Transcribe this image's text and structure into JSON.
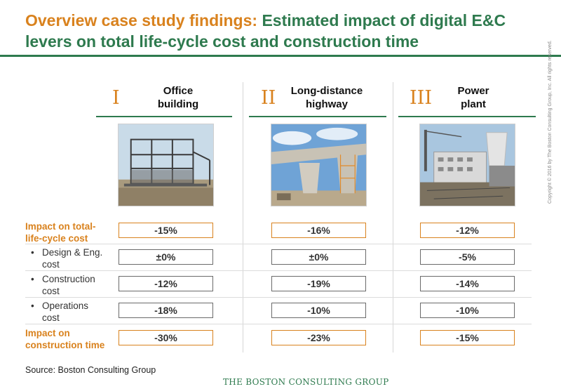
{
  "title": {
    "part1": "Overview case study findings:",
    "part2": " Estimated impact of digital E&C levers on total life-cycle cost and construction time"
  },
  "columns": [
    {
      "numeral": "I",
      "label_line1": "Office",
      "label_line2": "building"
    },
    {
      "numeral": "II",
      "label_line1": "Long-distance",
      "label_line2": "highway"
    },
    {
      "numeral": "III",
      "label_line1": "Power",
      "label_line2": "plant"
    }
  ],
  "rows": [
    {
      "line1": "Impact on total-",
      "line2": "life-cycle cost",
      "kind": "main",
      "values": [
        "-15%",
        "-16%",
        "-12%"
      ]
    },
    {
      "line1": "Design & Eng.",
      "line2": "cost",
      "kind": "sub",
      "values": [
        "±0%",
        "±0%",
        "-5%"
      ]
    },
    {
      "line1": "Construction",
      "line2": "cost",
      "kind": "sub",
      "values": [
        "-12%",
        "-19%",
        "-14%"
      ]
    },
    {
      "line1": "Operations",
      "line2": "cost",
      "kind": "sub",
      "values": [
        "-18%",
        "-10%",
        "-10%"
      ]
    },
    {
      "line1": "Impact on",
      "line2": "construction time",
      "kind": "main",
      "values": [
        "-30%",
        "-23%",
        "-15%"
      ]
    }
  ],
  "bullet": "•",
  "source": "Source: Boston Consulting Group",
  "footer_brand": "THE BOSTON CONSULTING GROUP",
  "copyright": "Copyright © 2016 by The Boston Consulting Group, Inc. All rights reserved.",
  "colors": {
    "accent_orange": "#d9821e",
    "accent_green": "#2e7a4e"
  }
}
